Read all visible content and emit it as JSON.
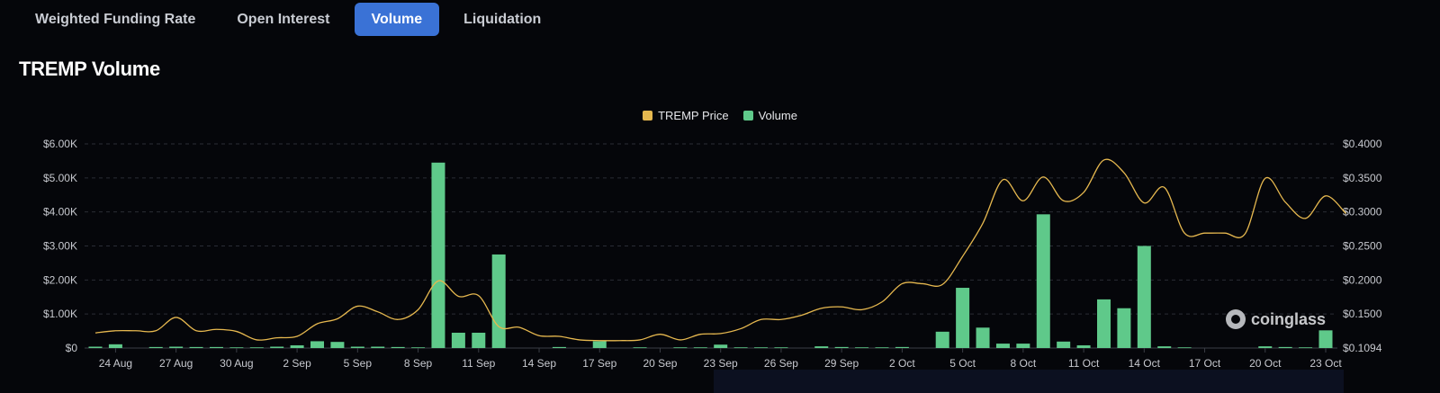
{
  "tabs": [
    {
      "label": "Weighted Funding Rate",
      "active": false
    },
    {
      "label": "Open Interest",
      "active": false
    },
    {
      "label": "Volume",
      "active": true
    },
    {
      "label": "Liquidation",
      "active": false
    }
  ],
  "chart_title": "TREMP Volume",
  "watermark": "coinglass",
  "colors": {
    "price": "#e6b84f",
    "volume": "#5fc98a",
    "active_tab": "#3a72d6",
    "background": "#05060a"
  },
  "chart_data": {
    "type": "bar",
    "legend": [
      {
        "name": "TREMP Price",
        "color": "#e6b84f"
      },
      {
        "name": "Volume",
        "color": "#5fc98a"
      }
    ],
    "legend_position": "top-center",
    "grid": true,
    "x_start": "2024-08-23",
    "x_end": "2024-10-23",
    "x_tick_labels": [
      "24 Aug",
      "27 Aug",
      "30 Aug",
      "2 Sep",
      "5 Sep",
      "8 Sep",
      "11 Sep",
      "14 Sep",
      "17 Sep",
      "20 Sep",
      "23 Sep",
      "26 Sep",
      "29 Sep",
      "2 Oct",
      "5 Oct",
      "8 Oct",
      "11 Oct",
      "14 Oct",
      "17 Oct",
      "20 Oct",
      "23 Oct"
    ],
    "y_left": {
      "ticks": [
        "$0",
        "$1.00K",
        "$2.00K",
        "$3.00K",
        "$4.00K",
        "$5.00K",
        "$6.00K"
      ],
      "min": 0,
      "max": 6000
    },
    "y_right": {
      "ticks": [
        "$0.1094",
        "$0.1500",
        "$0.2000",
        "$0.2500",
        "$0.3000",
        "$0.3500",
        "$0.4000"
      ],
      "min": 0.1094,
      "max": 0.4
    },
    "series": [
      {
        "name": "Volume",
        "type": "bar",
        "points": [
          [
            "2024-08-23",
            40
          ],
          [
            "2024-08-24",
            110
          ],
          [
            "2024-08-26",
            30
          ],
          [
            "2024-08-27",
            40
          ],
          [
            "2024-08-28",
            30
          ],
          [
            "2024-08-29",
            30
          ],
          [
            "2024-08-30",
            20
          ],
          [
            "2024-08-31",
            20
          ],
          [
            "2024-09-01",
            40
          ],
          [
            "2024-09-02",
            80
          ],
          [
            "2024-09-03",
            200
          ],
          [
            "2024-09-04",
            180
          ],
          [
            "2024-09-05",
            40
          ],
          [
            "2024-09-06",
            40
          ],
          [
            "2024-09-07",
            30
          ],
          [
            "2024-09-08",
            20
          ],
          [
            "2024-09-09",
            5450
          ],
          [
            "2024-09-10",
            450
          ],
          [
            "2024-09-11",
            450
          ],
          [
            "2024-09-12",
            2750
          ],
          [
            "2024-09-15",
            30
          ],
          [
            "2024-09-17",
            200
          ],
          [
            "2024-09-19",
            20
          ],
          [
            "2024-09-21",
            20
          ],
          [
            "2024-09-22",
            20
          ],
          [
            "2024-09-23",
            100
          ],
          [
            "2024-09-24",
            20
          ],
          [
            "2024-09-25",
            20
          ],
          [
            "2024-09-26",
            20
          ],
          [
            "2024-09-28",
            50
          ],
          [
            "2024-09-29",
            30
          ],
          [
            "2024-09-30",
            20
          ],
          [
            "2024-10-01",
            20
          ],
          [
            "2024-10-02",
            30
          ],
          [
            "2024-10-04",
            480
          ],
          [
            "2024-10-05",
            1770
          ],
          [
            "2024-10-06",
            600
          ],
          [
            "2024-10-07",
            130
          ],
          [
            "2024-10-08",
            130
          ],
          [
            "2024-10-09",
            3930
          ],
          [
            "2024-10-10",
            190
          ],
          [
            "2024-10-11",
            80
          ],
          [
            "2024-10-12",
            1430
          ],
          [
            "2024-10-13",
            1170
          ],
          [
            "2024-10-14",
            3000
          ],
          [
            "2024-10-15",
            50
          ],
          [
            "2024-10-16",
            20
          ],
          [
            "2024-10-20",
            50
          ],
          [
            "2024-10-21",
            30
          ],
          [
            "2024-10-22",
            20
          ],
          [
            "2024-10-23",
            520
          ]
        ]
      },
      {
        "name": "TREMP Price",
        "type": "line",
        "points": [
          [
            "2024-08-23",
            0.131
          ],
          [
            "2024-08-24",
            0.134
          ],
          [
            "2024-08-25",
            0.134
          ],
          [
            "2024-08-26",
            0.134
          ],
          [
            "2024-08-27",
            0.153
          ],
          [
            "2024-08-28",
            0.134
          ],
          [
            "2024-08-29",
            0.136
          ],
          [
            "2024-08-30",
            0.133
          ],
          [
            "2024-08-31",
            0.121
          ],
          [
            "2024-09-01",
            0.124
          ],
          [
            "2024-09-02",
            0.126
          ],
          [
            "2024-09-03",
            0.144
          ],
          [
            "2024-09-04",
            0.151
          ],
          [
            "2024-09-05",
            0.169
          ],
          [
            "2024-09-06",
            0.161
          ],
          [
            "2024-09-07",
            0.15
          ],
          [
            "2024-09-08",
            0.164
          ],
          [
            "2024-09-09",
            0.205
          ],
          [
            "2024-09-10",
            0.183
          ],
          [
            "2024-09-11",
            0.184
          ],
          [
            "2024-09-12",
            0.14
          ],
          [
            "2024-09-13",
            0.139
          ],
          [
            "2024-09-14",
            0.127
          ],
          [
            "2024-09-15",
            0.126
          ],
          [
            "2024-09-16",
            0.121
          ],
          [
            "2024-09-17",
            0.12
          ],
          [
            "2024-09-18",
            0.12
          ],
          [
            "2024-09-19",
            0.121
          ],
          [
            "2024-09-20",
            0.129
          ],
          [
            "2024-09-21",
            0.121
          ],
          [
            "2024-09-22",
            0.129
          ],
          [
            "2024-09-23",
            0.13
          ],
          [
            "2024-09-24",
            0.137
          ],
          [
            "2024-09-25",
            0.15
          ],
          [
            "2024-09-26",
            0.15
          ],
          [
            "2024-09-27",
            0.156
          ],
          [
            "2024-09-28",
            0.166
          ],
          [
            "2024-09-29",
            0.168
          ],
          [
            "2024-09-30",
            0.164
          ],
          [
            "2024-10-01",
            0.175
          ],
          [
            "2024-10-02",
            0.201
          ],
          [
            "2024-10-03",
            0.201
          ],
          [
            "2024-10-04",
            0.2
          ],
          [
            "2024-10-05",
            0.24
          ],
          [
            "2024-10-06",
            0.287
          ],
          [
            "2024-10-07",
            0.349
          ],
          [
            "2024-10-08",
            0.319
          ],
          [
            "2024-10-09",
            0.353
          ],
          [
            "2024-10-10",
            0.319
          ],
          [
            "2024-10-11",
            0.331
          ],
          [
            "2024-10-12",
            0.377
          ],
          [
            "2024-10-13",
            0.359
          ],
          [
            "2024-10-14",
            0.316
          ],
          [
            "2024-10-15",
            0.338
          ],
          [
            "2024-10-16",
            0.273
          ],
          [
            "2024-10-17",
            0.273
          ],
          [
            "2024-10-18",
            0.273
          ],
          [
            "2024-10-19",
            0.272
          ],
          [
            "2024-10-20",
            0.351
          ],
          [
            "2024-10-21",
            0.317
          ],
          [
            "2024-10-22",
            0.294
          ],
          [
            "2024-10-23",
            0.326
          ],
          [
            "2024-10-24",
            0.301
          ]
        ]
      }
    ]
  }
}
